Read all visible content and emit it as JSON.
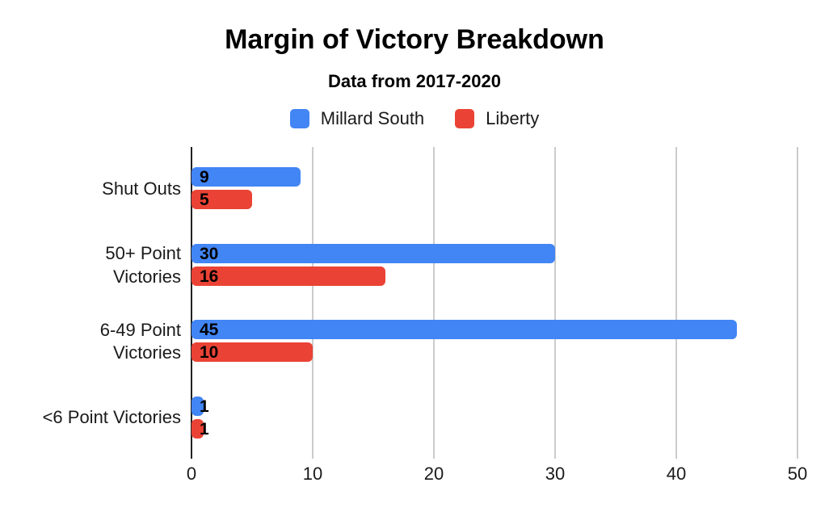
{
  "chart": {
    "title": "Margin of Victory Breakdown",
    "subtitle": "Data from 2017-2020"
  },
  "chart_data": {
    "type": "bar",
    "orientation": "horizontal",
    "title": "Margin of Victory Breakdown",
    "subtitle": "Data from 2017-2020",
    "categories": [
      "Shut Outs",
      "50+ Point Victories",
      "6-49 Point Victories",
      "<6 Point Victories"
    ],
    "categories_display": [
      "Shut Outs",
      "50+ Point\nVictories",
      "6-49 Point\nVictories",
      "<6 Point Victories"
    ],
    "series": [
      {
        "name": "Millard South",
        "color": "#4285F4",
        "values": [
          9,
          30,
          45,
          1
        ]
      },
      {
        "name": "Liberty",
        "color": "#EA4335",
        "values": [
          5,
          16,
          10,
          1
        ]
      }
    ],
    "xlim": [
      0,
      50
    ],
    "x_ticks": [
      0,
      10,
      20,
      30,
      40,
      50
    ],
    "grid": true,
    "legend_position": "top",
    "value_labels": true,
    "colors": {
      "gridline": "#cccccc",
      "axis_line": "#212121",
      "text": "#000000"
    }
  }
}
